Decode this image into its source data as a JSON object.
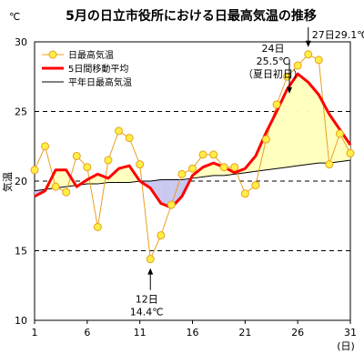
{
  "chart_data": {
    "type": "line",
    "title": "5月の日立市役所における日最高気温の推移",
    "ylabel": "気温",
    "yunit": "℃",
    "xunit": "(日)",
    "xlim": [
      1,
      31
    ],
    "ylim": [
      10,
      30
    ],
    "x_ticks": [
      1,
      6,
      11,
      16,
      21,
      26,
      31
    ],
    "y_ticks": [
      10,
      15,
      20,
      25,
      30
    ],
    "grid": "horizontal-dashed",
    "legend_position": "top-left",
    "colors": {
      "daily": "#ffee44",
      "daily_line": "#e8a020",
      "moving_average": "#ff0000",
      "normal": "#000000",
      "fill_above": "#ffffc0",
      "fill_below": "#c8c8f0"
    },
    "x": [
      1,
      2,
      3,
      4,
      5,
      6,
      7,
      8,
      9,
      10,
      11,
      12,
      13,
      14,
      15,
      16,
      17,
      18,
      19,
      20,
      21,
      22,
      23,
      24,
      25,
      26,
      27,
      28,
      29,
      30,
      31
    ],
    "series": [
      {
        "name": "日最高気温",
        "values": [
          20.8,
          22.5,
          19.6,
          19.2,
          21.8,
          21.0,
          16.7,
          21.5,
          23.6,
          23.1,
          21.2,
          14.4,
          16.1,
          18.3,
          20.5,
          20.9,
          21.9,
          21.9,
          21.0,
          21.0,
          19.1,
          19.7,
          23.0,
          25.5,
          27.5,
          28.3,
          29.1,
          28.7,
          21.2,
          23.4,
          22.0
        ]
      },
      {
        "name": "5日間移動平均",
        "values": [
          18.9,
          19.3,
          20.8,
          20.8,
          19.6,
          20.1,
          20.5,
          20.2,
          20.9,
          21.1,
          20.0,
          19.5,
          18.4,
          18.1,
          18.9,
          20.4,
          21.0,
          21.3,
          21.0,
          20.6,
          20.9,
          21.8,
          23.5,
          25.0,
          26.6,
          27.7,
          27.1,
          26.2,
          24.8,
          23.7,
          22.6
        ]
      },
      {
        "name": "平年日最高気温",
        "values": [
          19.3,
          19.4,
          19.5,
          19.6,
          19.7,
          19.8,
          19.8,
          19.9,
          19.9,
          19.9,
          20.0,
          20.0,
          20.1,
          20.1,
          20.1,
          20.2,
          20.3,
          20.4,
          20.4,
          20.5,
          20.6,
          20.7,
          20.8,
          20.9,
          21.0,
          21.1,
          21.2,
          21.3,
          21.3,
          21.4,
          21.5
        ]
      }
    ],
    "annotations": [
      {
        "x": 12,
        "y": 14.4,
        "lines": [
          "12日",
          "14.4℃"
        ],
        "position": "below"
      },
      {
        "x": 24,
        "y": 25.5,
        "lines": [
          "24日",
          "25.5℃",
          "（夏日初日）"
        ],
        "position": "above"
      },
      {
        "x": 27,
        "y": 29.1,
        "lines": [
          "27日29.1℃"
        ],
        "position": "above"
      }
    ]
  }
}
